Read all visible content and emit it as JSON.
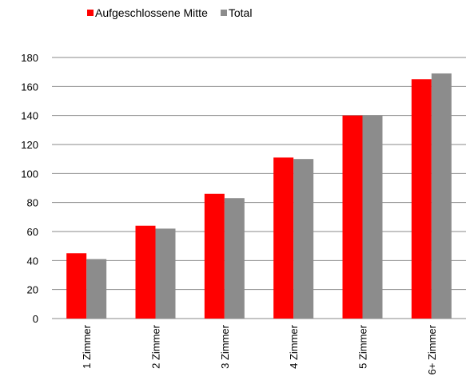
{
  "chart_data": {
    "type": "bar",
    "categories": [
      "1 Zimmer",
      "2 Zimmer",
      "3 Zimmer",
      "4 Zimmer",
      "5 Zimmer",
      "6+ Zimmer"
    ],
    "series": [
      {
        "name": "Aufgeschlossene Mitte",
        "color": "#ff0000",
        "values": [
          45,
          64,
          86,
          111,
          140,
          165
        ]
      },
      {
        "name": "Total",
        "color": "#8c8c8c",
        "values": [
          41,
          62,
          83,
          110,
          140,
          169
        ]
      }
    ],
    "yticks": [
      "0",
      "20",
      "40",
      "60",
      "80",
      "100",
      "120",
      "140",
      "160",
      "180"
    ],
    "ylim": [
      0,
      180
    ],
    "grid": true,
    "legend_position": "top-left"
  }
}
